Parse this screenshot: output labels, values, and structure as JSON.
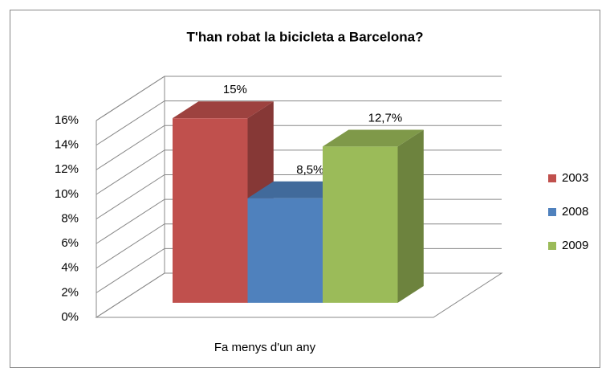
{
  "chart_data": {
    "type": "bar3d",
    "title": "T'han robat la bicicleta a Barcelona?",
    "categories": [
      "Fa menys d'un any"
    ],
    "series": [
      {
        "name": "2003",
        "color": "#c0504d",
        "values": [
          15
        ],
        "value_labels": [
          "15%"
        ]
      },
      {
        "name": "2008",
        "color": "#4f81bd",
        "values": [
          8.5
        ],
        "value_labels": [
          "8,5%"
        ]
      },
      {
        "name": "2009",
        "color": "#9bbb59",
        "values": [
          12.7
        ],
        "value_labels": [
          "12,7%"
        ]
      }
    ],
    "ylim": [
      0,
      16
    ],
    "yticks": [
      {
        "value": 0,
        "label": "0%"
      },
      {
        "value": 2,
        "label": "2%"
      },
      {
        "value": 4,
        "label": "4%"
      },
      {
        "value": 6,
        "label": "6%"
      },
      {
        "value": 8,
        "label": "8%"
      },
      {
        "value": 10,
        "label": "10%"
      },
      {
        "value": 12,
        "label": "12%"
      },
      {
        "value": 14,
        "label": "14%"
      },
      {
        "value": 16,
        "label": "16%"
      }
    ],
    "grid": true,
    "legend": "right"
  }
}
